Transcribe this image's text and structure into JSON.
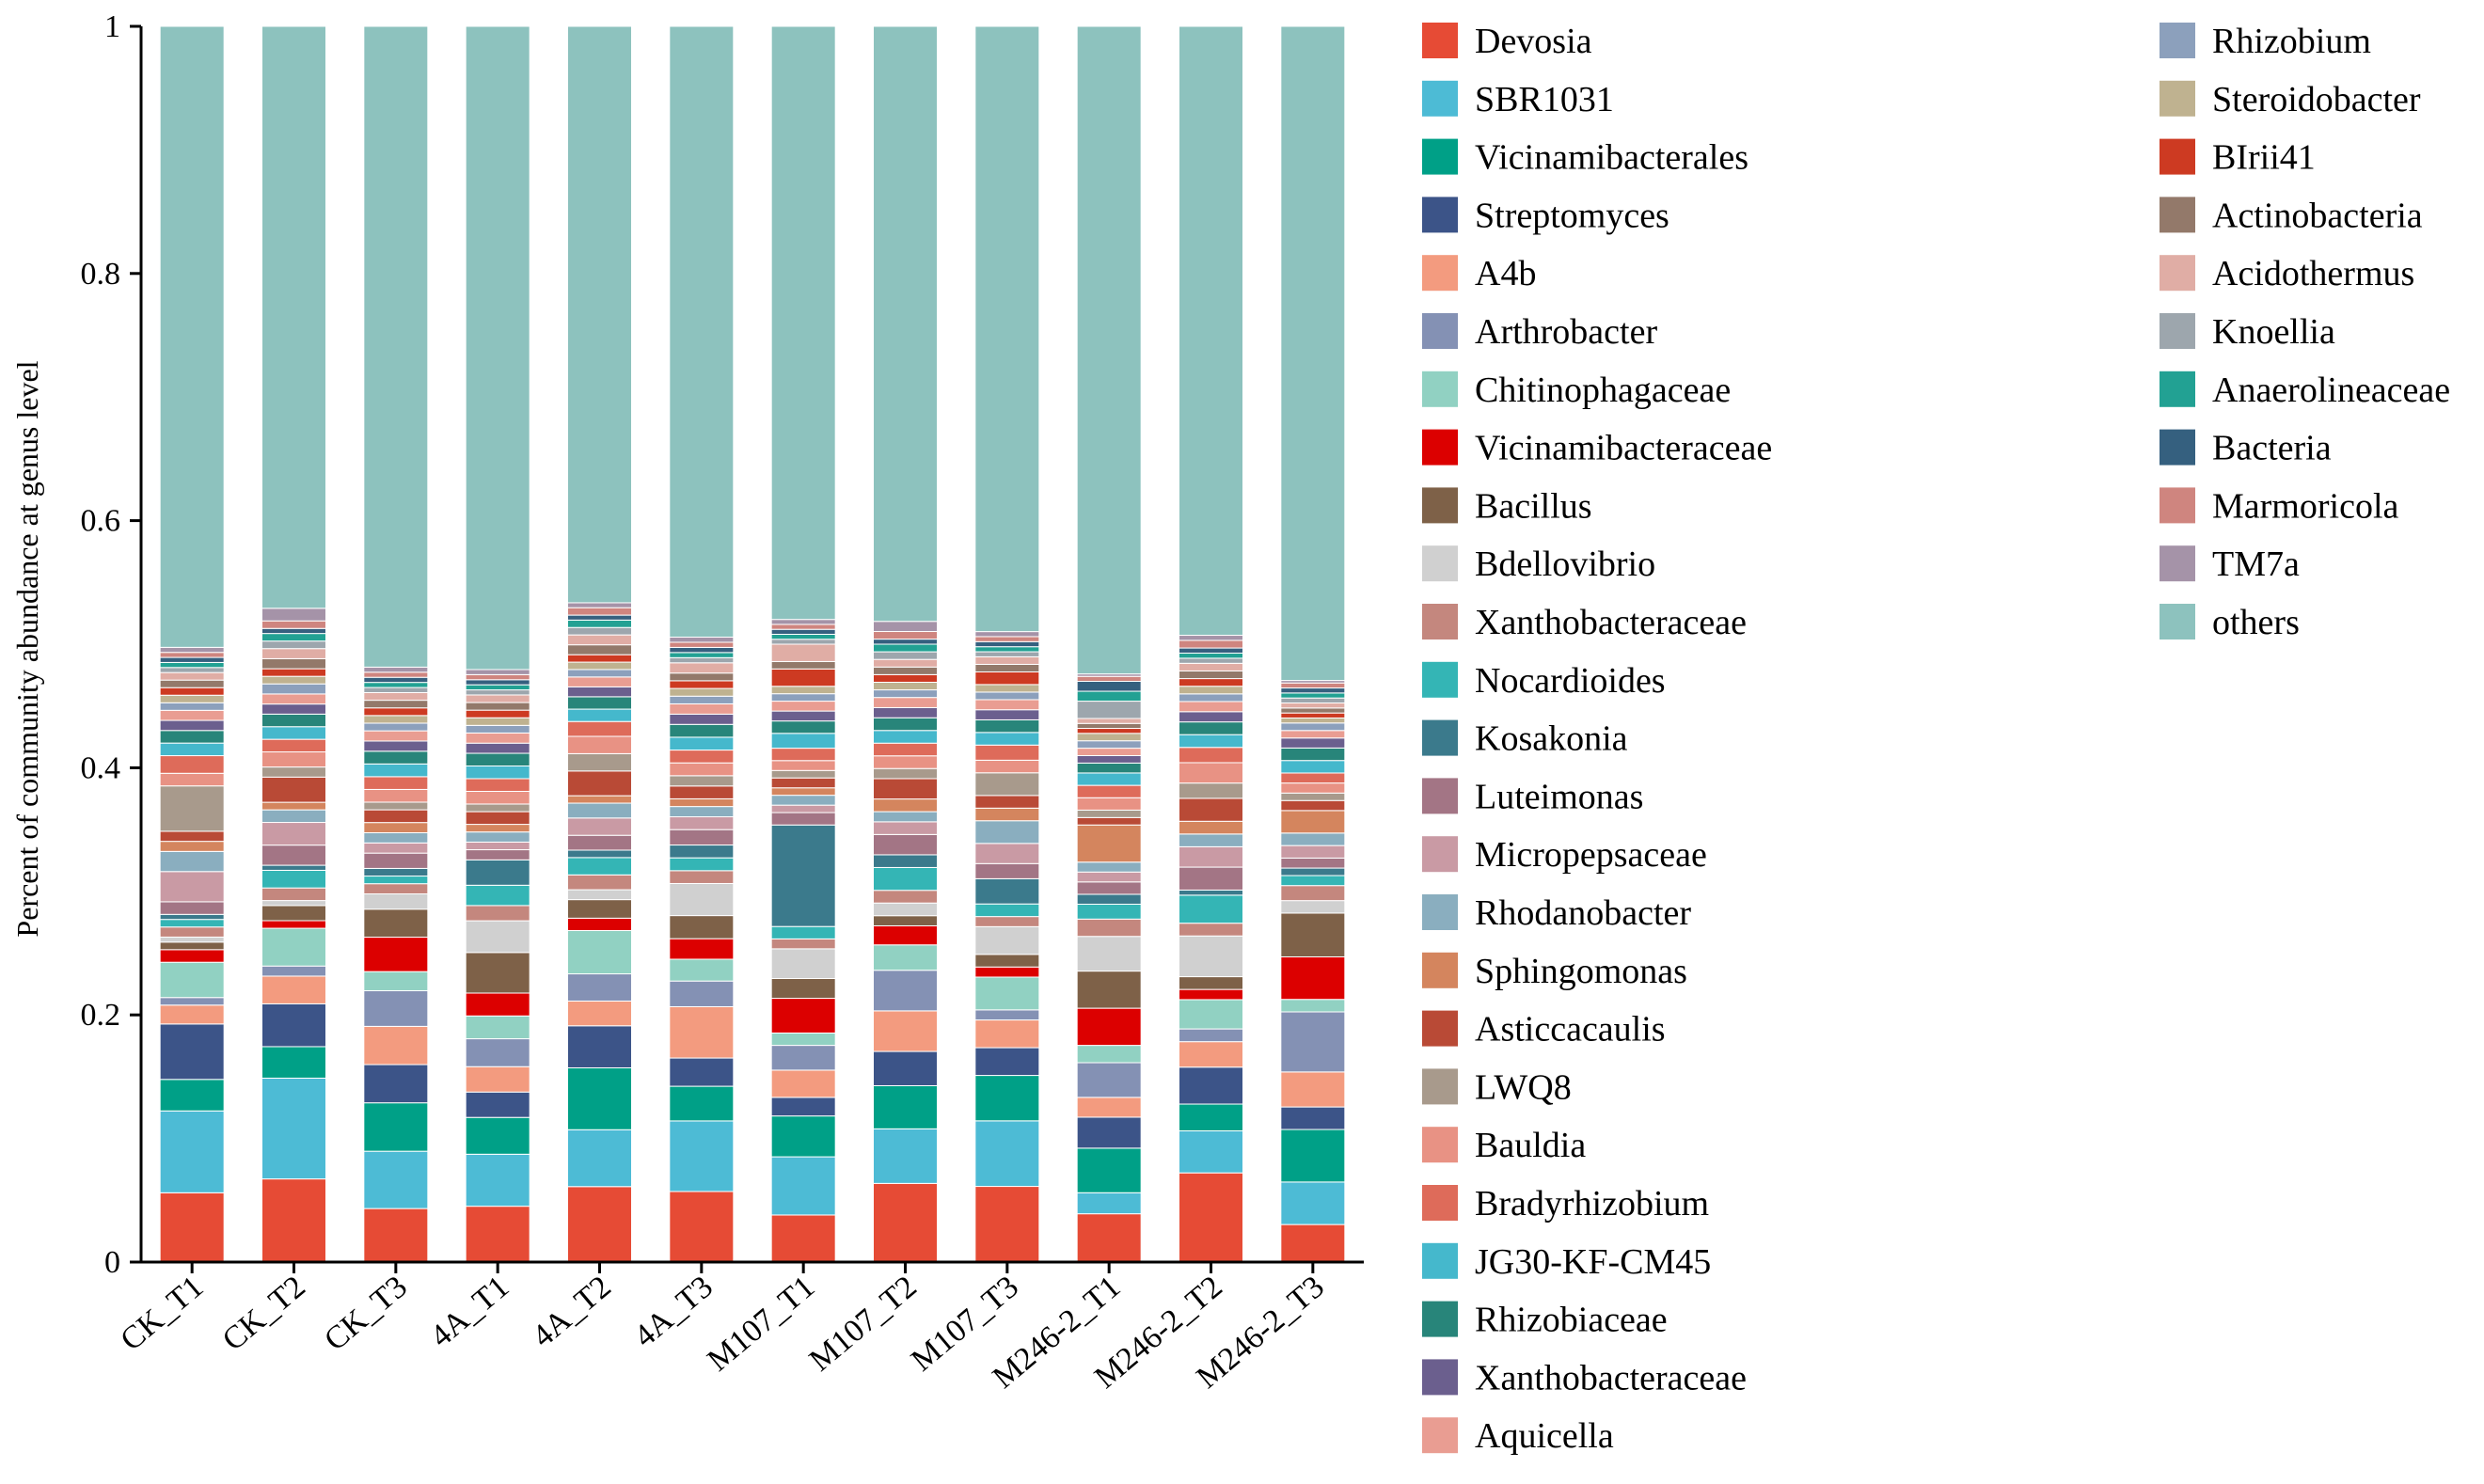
{
  "chart_data": {
    "type": "bar",
    "stacked": true,
    "ylabel": "Percent of community abundance at genus level",
    "ylim": [
      0,
      1
    ],
    "yticks": [
      "0",
      "0.2",
      "0.4",
      "0.6",
      "0.8",
      "1"
    ],
    "categories": [
      "CK_T1",
      "CK_T2",
      "CK_T3",
      "4A_T1",
      "4A_T2",
      "4A_T3",
      "M107_T1",
      "M107_T2",
      "M107_T3",
      "M246-2_T1",
      "M246-2_T2",
      "M246-2_T3"
    ],
    "legend_position": "right",
    "series": [
      {
        "name": "Devosia",
        "color": "#E64B35",
        "values": [
          0.055,
          0.066,
          0.042,
          0.044,
          0.061,
          0.055,
          0.038,
          0.062,
          0.06,
          0.039,
          0.07,
          0.03
        ]
      },
      {
        "name": "SBR1031",
        "color": "#4DBBD5",
        "values": [
          0.065,
          0.08,
          0.045,
          0.041,
          0.046,
          0.055,
          0.047,
          0.043,
          0.052,
          0.017,
          0.033,
          0.034
        ]
      },
      {
        "name": "Vicinamibacterales",
        "color": "#00A087",
        "values": [
          0.025,
          0.025,
          0.038,
          0.029,
          0.05,
          0.027,
          0.033,
          0.034,
          0.036,
          0.036,
          0.021,
          0.042
        ]
      },
      {
        "name": "Streptomyces",
        "color": "#3C5488",
        "values": [
          0.044,
          0.034,
          0.03,
          0.02,
          0.034,
          0.022,
          0.015,
          0.027,
          0.022,
          0.025,
          0.029,
          0.018
        ]
      },
      {
        "name": "A4b",
        "color": "#F39B7F",
        "values": [
          0.015,
          0.022,
          0.03,
          0.02,
          0.02,
          0.04,
          0.022,
          0.032,
          0.022,
          0.016,
          0.02,
          0.028
        ]
      },
      {
        "name": "Arthrobacter",
        "color": "#8491B4",
        "values": [
          0.006,
          0.008,
          0.028,
          0.022,
          0.022,
          0.02,
          0.02,
          0.032,
          0.008,
          0.028,
          0.01,
          0.048
        ]
      },
      {
        "name": "Chitinophagaceae",
        "color": "#91D1C2",
        "values": [
          0.028,
          0.03,
          0.015,
          0.018,
          0.035,
          0.017,
          0.01,
          0.02,
          0.026,
          0.014,
          0.023,
          0.01
        ]
      },
      {
        "name": "Vicinamibacteraceae",
        "color": "#DC0000",
        "values": [
          0.01,
          0.006,
          0.027,
          0.018,
          0.01,
          0.016,
          0.028,
          0.015,
          0.008,
          0.03,
          0.008,
          0.034
        ]
      },
      {
        "name": "Bacillus",
        "color": "#7E6148",
        "values": [
          0.006,
          0.012,
          0.022,
          0.032,
          0.015,
          0.018,
          0.016,
          0.008,
          0.01,
          0.03,
          0.01,
          0.035
        ]
      },
      {
        "name": "Bdellovibrio",
        "color": "#D0D0D0",
        "values": [
          0.004,
          0.004,
          0.012,
          0.025,
          0.008,
          0.025,
          0.024,
          0.01,
          0.022,
          0.028,
          0.032,
          0.01
        ]
      },
      {
        "name": "Xanthobacteraceae",
        "color": "#C4877E",
        "values": [
          0.008,
          0.01,
          0.008,
          0.012,
          0.012,
          0.01,
          0.008,
          0.01,
          0.008,
          0.014,
          0.01,
          0.012
        ]
      },
      {
        "name": "Nocardioides",
        "color": "#34B5B5",
        "values": [
          0.006,
          0.014,
          0.006,
          0.016,
          0.014,
          0.01,
          0.01,
          0.018,
          0.01,
          0.012,
          0.022,
          0.008
        ]
      },
      {
        "name": "Kosakonia",
        "color": "#3B7A8C",
        "values": [
          0.004,
          0.004,
          0.006,
          0.02,
          0.006,
          0.01,
          0.082,
          0.01,
          0.02,
          0.008,
          0.004,
          0.006
        ]
      },
      {
        "name": "Luteimonas",
        "color": "#A37585",
        "values": [
          0.01,
          0.016,
          0.012,
          0.008,
          0.012,
          0.012,
          0.01,
          0.016,
          0.012,
          0.01,
          0.018,
          0.008
        ]
      },
      {
        "name": "Micropepsaceae",
        "color": "#C99AA4",
        "values": [
          0.024,
          0.018,
          0.008,
          0.006,
          0.014,
          0.01,
          0.006,
          0.01,
          0.016,
          0.008,
          0.016,
          0.01
        ]
      },
      {
        "name": "Rhodanobacter",
        "color": "#8AAEBF",
        "values": [
          0.016,
          0.01,
          0.008,
          0.008,
          0.012,
          0.008,
          0.008,
          0.008,
          0.018,
          0.008,
          0.01,
          0.01
        ]
      },
      {
        "name": "Sphingomonas",
        "color": "#D4855E",
        "values": [
          0.008,
          0.006,
          0.008,
          0.006,
          0.006,
          0.006,
          0.006,
          0.01,
          0.01,
          0.03,
          0.01,
          0.018
        ]
      },
      {
        "name": "Asticcacaulis",
        "color": "#B94A36",
        "values": [
          0.008,
          0.02,
          0.01,
          0.01,
          0.02,
          0.01,
          0.008,
          0.016,
          0.01,
          0.006,
          0.018,
          0.008
        ]
      },
      {
        "name": "LWQ8",
        "color": "#A89A8C",
        "values": [
          0.036,
          0.008,
          0.006,
          0.006,
          0.014,
          0.008,
          0.006,
          0.008,
          0.018,
          0.006,
          0.012,
          0.006
        ]
      },
      {
        "name": "Bauldia",
        "color": "#E89284",
        "values": [
          0.01,
          0.012,
          0.01,
          0.01,
          0.014,
          0.01,
          0.008,
          0.01,
          0.01,
          0.01,
          0.016,
          0.008
        ]
      },
      {
        "name": "Bradyrhizobium",
        "color": "#DE6B5A",
        "values": [
          0.014,
          0.01,
          0.01,
          0.01,
          0.012,
          0.01,
          0.01,
          0.01,
          0.012,
          0.01,
          0.012,
          0.008
        ]
      },
      {
        "name": "JG30-KF-CM45",
        "color": "#45B8CC",
        "values": [
          0.01,
          0.01,
          0.01,
          0.01,
          0.01,
          0.01,
          0.012,
          0.01,
          0.01,
          0.01,
          0.01,
          0.01
        ]
      },
      {
        "name": "Rhizobiaceae",
        "color": "#28857A",
        "values": [
          0.01,
          0.01,
          0.01,
          0.01,
          0.01,
          0.01,
          0.01,
          0.01,
          0.01,
          0.008,
          0.01,
          0.01
        ]
      },
      {
        "name": "Xanthobacteraceae",
        "color": "#6B5F8E",
        "values": [
          0.008,
          0.008,
          0.008,
          0.008,
          0.008,
          0.008,
          0.008,
          0.008,
          0.008,
          0.006,
          0.008,
          0.008
        ]
      },
      {
        "name": "Aquicella",
        "color": "#E99D92",
        "values": [
          0.008,
          0.008,
          0.008,
          0.008,
          0.008,
          0.008,
          0.008,
          0.008,
          0.008,
          0.006,
          0.008,
          0.006
        ]
      },
      {
        "name": "Rhizobium",
        "color": "#8CA0BC",
        "values": [
          0.006,
          0.008,
          0.006,
          0.006,
          0.006,
          0.006,
          0.006,
          0.006,
          0.006,
          0.006,
          0.006,
          0.006
        ]
      },
      {
        "name": "Steroidobacter",
        "color": "#BFB290",
        "values": [
          0.006,
          0.006,
          0.006,
          0.006,
          0.006,
          0.006,
          0.006,
          0.006,
          0.006,
          0.006,
          0.006,
          0.004
        ]
      },
      {
        "name": "BIrii41",
        "color": "#CD3A22",
        "values": [
          0.006,
          0.006,
          0.006,
          0.006,
          0.006,
          0.006,
          0.014,
          0.006,
          0.01,
          0.004,
          0.006,
          0.004
        ]
      },
      {
        "name": "Actinobacteria",
        "color": "#93796A",
        "values": [
          0.006,
          0.008,
          0.006,
          0.006,
          0.008,
          0.006,
          0.006,
          0.006,
          0.006,
          0.004,
          0.006,
          0.004
        ]
      },
      {
        "name": "Acidothermus",
        "color": "#E0ADA5",
        "values": [
          0.006,
          0.008,
          0.006,
          0.006,
          0.008,
          0.008,
          0.014,
          0.006,
          0.006,
          0.004,
          0.006,
          0.004
        ]
      },
      {
        "name": "Knoellia",
        "color": "#9DA6AD",
        "values": [
          0.004,
          0.006,
          0.004,
          0.004,
          0.006,
          0.004,
          0.004,
          0.006,
          0.004,
          0.014,
          0.004,
          0.004
        ]
      },
      {
        "name": "Anaerolineaceae",
        "color": "#22A193",
        "values": [
          0.004,
          0.006,
          0.004,
          0.004,
          0.006,
          0.004,
          0.004,
          0.006,
          0.004,
          0.008,
          0.004,
          0.004
        ]
      },
      {
        "name": "Bacteria",
        "color": "#35607F",
        "values": [
          0.004,
          0.004,
          0.004,
          0.004,
          0.004,
          0.004,
          0.004,
          0.004,
          0.004,
          0.008,
          0.004,
          0.004
        ]
      },
      {
        "name": "Marmoricola",
        "color": "#CF857F",
        "values": [
          0.004,
          0.006,
          0.004,
          0.004,
          0.006,
          0.004,
          0.004,
          0.006,
          0.004,
          0.004,
          0.006,
          0.004
        ]
      },
      {
        "name": "TM7a",
        "color": "#A593A8",
        "values": [
          0.004,
          0.01,
          0.004,
          0.004,
          0.004,
          0.004,
          0.004,
          0.008,
          0.004,
          0.002,
          0.004,
          0.002
        ]
      },
      {
        "name": "others",
        "color": "#8DC2BE",
        "values": [
          0.493,
          0.462,
          0.503,
          0.507,
          0.466,
          0.476,
          0.479,
          0.469,
          0.48,
          0.523,
          0.478,
          0.523
        ]
      }
    ]
  }
}
